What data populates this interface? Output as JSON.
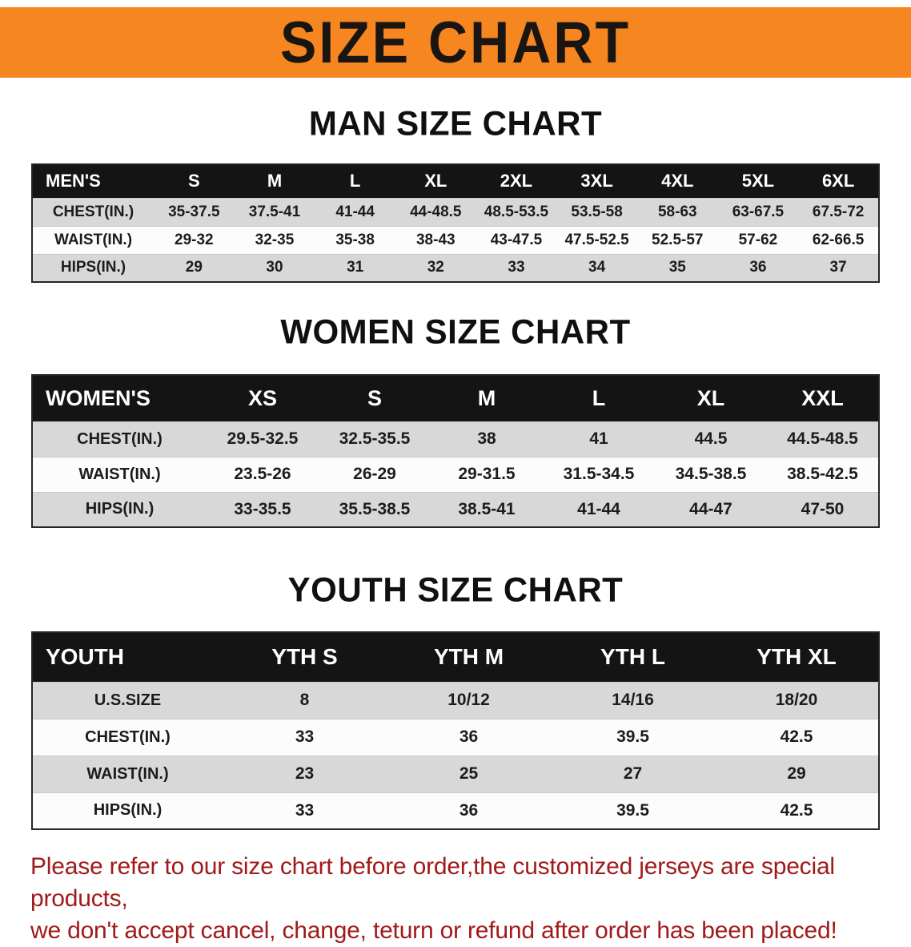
{
  "banner": {
    "title": "SIZE CHART",
    "bg_color": "#F6861F"
  },
  "sections": [
    {
      "id": "men",
      "heading": "MAN SIZE CHART",
      "table": {
        "header": [
          "MEN'S",
          "S",
          "M",
          "L",
          "XL",
          "2XL",
          "3XL",
          "4XL",
          "5XL",
          "6XL"
        ],
        "rows": [
          [
            "CHEST(IN.)",
            "35-37.5",
            "37.5-41",
            "41-44",
            "44-48.5",
            "48.5-53.5",
            "53.5-58",
            "58-63",
            "63-67.5",
            "67.5-72"
          ],
          [
            "WAIST(IN.)",
            "29-32",
            "32-35",
            "35-38",
            "38-43",
            "43-47.5",
            "47.5-52.5",
            "52.5-57",
            "57-62",
            "62-66.5"
          ],
          [
            "HIPS(IN.)",
            "29",
            "30",
            "31",
            "32",
            "33",
            "34",
            "35",
            "36",
            "37"
          ]
        ]
      }
    },
    {
      "id": "women",
      "heading": "WOMEN SIZE CHART",
      "table": {
        "header": [
          "WOMEN'S",
          "XS",
          "S",
          "M",
          "L",
          "XL",
          "XXL"
        ],
        "rows": [
          [
            "CHEST(IN.)",
            "29.5-32.5",
            "32.5-35.5",
            "38",
            "41",
            "44.5",
            "44.5-48.5"
          ],
          [
            "WAIST(IN.)",
            "23.5-26",
            "26-29",
            "29-31.5",
            "31.5-34.5",
            "34.5-38.5",
            "38.5-42.5"
          ],
          [
            "HIPS(IN.)",
            "33-35.5",
            "35.5-38.5",
            "38.5-41",
            "41-44",
            "44-47",
            "47-50"
          ]
        ]
      }
    },
    {
      "id": "youth",
      "heading": "YOUTH SIZE CHART",
      "table": {
        "header": [
          "YOUTH",
          "YTH S",
          "YTH M",
          "YTH L",
          "YTH XL"
        ],
        "rows": [
          [
            "U.S.SIZE",
            "8",
            "10/12",
            "14/16",
            "18/20"
          ],
          [
            "CHEST(IN.)",
            "33",
            "36",
            "39.5",
            "42.5"
          ],
          [
            "WAIST(IN.)",
            "23",
            "25",
            "27",
            "29"
          ],
          [
            "HIPS(IN.)",
            "33",
            "36",
            "39.5",
            "42.5"
          ]
        ]
      }
    }
  ],
  "footer": {
    "line1": "Please refer to our size chart before order,the customized jerseys are special products,",
    "line2": "we don't accept cancel, change, teturn or refund after order has been placed!",
    "text_color": "#A11A1A"
  }
}
